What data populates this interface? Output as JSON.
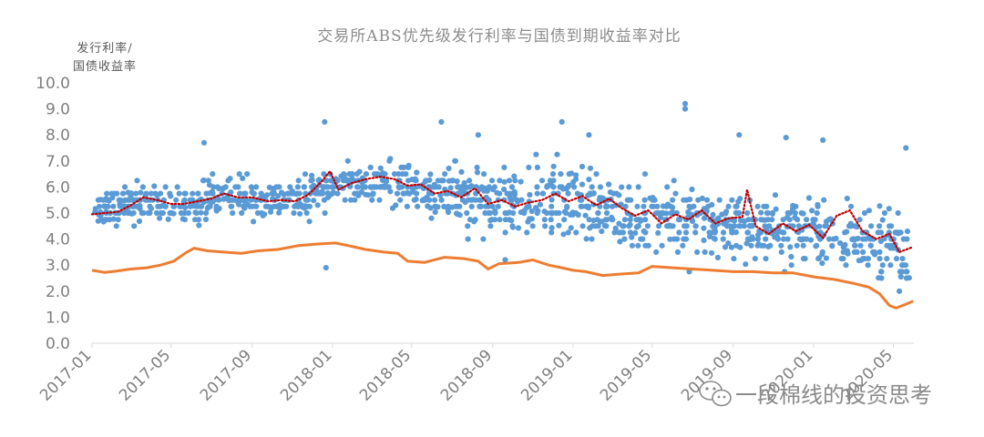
{
  "chart_data": {
    "type": "scatter",
    "title": "交易所ABS优先级发行利率与国债到期收益率对比",
    "ylabel_lines": [
      "发行利率/",
      "国债收益率"
    ],
    "ylim": [
      0,
      10
    ],
    "yticks": [
      "0.0",
      "1.0",
      "2.0",
      "3.0",
      "4.0",
      "5.0",
      "6.0",
      "7.0",
      "8.0",
      "9.0",
      "10.0"
    ],
    "xlim": [
      "2017-01-01",
      "2020-06-01"
    ],
    "xticks": [
      {
        "date": "2017-01-01",
        "label": "2017-01"
      },
      {
        "date": "2017-05-01",
        "label": "2017-05"
      },
      {
        "date": "2017-09-01",
        "label": "2017-09"
      },
      {
        "date": "2018-01-01",
        "label": "2018-01"
      },
      {
        "date": "2018-05-01",
        "label": "2018-05"
      },
      {
        "date": "2018-09-01",
        "label": "2018-09"
      },
      {
        "date": "2019-01-01",
        "label": "2019-01"
      },
      {
        "date": "2019-05-01",
        "label": "2019-05"
      },
      {
        "date": "2019-09-01",
        "label": "2019-09"
      },
      {
        "date": "2020-01-01",
        "label": "2020-01"
      },
      {
        "date": "2020-05-01",
        "label": "2020-05"
      }
    ],
    "grid": false,
    "legend": "none",
    "colors": {
      "scatter": "#5b9bd5",
      "treasury": "#ed7d31",
      "trend": "#c00000"
    },
    "scatter_band": [
      {
        "date": "2017-01-05",
        "center": 5.0,
        "spread": 0.5
      },
      {
        "date": "2017-03-01",
        "center": 5.4,
        "spread": 0.7
      },
      {
        "date": "2017-05-01",
        "center": 5.3,
        "spread": 0.6
      },
      {
        "date": "2017-07-01",
        "center": 5.5,
        "spread": 0.7
      },
      {
        "date": "2017-09-01",
        "center": 5.6,
        "spread": 0.6
      },
      {
        "date": "2017-11-01",
        "center": 5.5,
        "spread": 0.5
      },
      {
        "date": "2017-12-20",
        "center": 6.0,
        "spread": 0.8
      },
      {
        "date": "2018-02-01",
        "center": 6.2,
        "spread": 0.6
      },
      {
        "date": "2018-04-01",
        "center": 6.0,
        "spread": 0.8
      },
      {
        "date": "2018-06-01",
        "center": 5.8,
        "spread": 0.9
      },
      {
        "date": "2018-08-01",
        "center": 5.6,
        "spread": 1.0
      },
      {
        "date": "2018-10-01",
        "center": 5.3,
        "spread": 1.1
      },
      {
        "date": "2018-12-01",
        "center": 5.5,
        "spread": 1.2
      },
      {
        "date": "2019-02-01",
        "center": 5.3,
        "spread": 1.1
      },
      {
        "date": "2019-04-01",
        "center": 4.9,
        "spread": 1.2
      },
      {
        "date": "2019-06-01",
        "center": 4.7,
        "spread": 1.2
      },
      {
        "date": "2019-08-01",
        "center": 4.6,
        "spread": 1.2
      },
      {
        "date": "2019-10-01",
        "center": 4.4,
        "spread": 1.1
      },
      {
        "date": "2019-12-01",
        "center": 4.4,
        "spread": 1.1
      },
      {
        "date": "2020-02-01",
        "center": 4.1,
        "spread": 1.1
      },
      {
        "date": "2020-04-01",
        "center": 3.8,
        "spread": 1.2
      },
      {
        "date": "2020-05-25",
        "center": 3.5,
        "spread": 1.2
      }
    ],
    "outliers": [
      {
        "date": "2017-06-20",
        "value": 7.7
      },
      {
        "date": "2017-12-20",
        "value": 8.5
      },
      {
        "date": "2017-12-22",
        "value": 2.9
      },
      {
        "date": "2018-06-15",
        "value": 8.5
      },
      {
        "date": "2018-08-10",
        "value": 8.0
      },
      {
        "date": "2018-12-15",
        "value": 8.5
      },
      {
        "date": "2019-01-25",
        "value": 8.0
      },
      {
        "date": "2019-06-20",
        "value": 9.2
      },
      {
        "date": "2019-06-20",
        "value": 9.0
      },
      {
        "date": "2019-09-10",
        "value": 8.0
      },
      {
        "date": "2019-11-20",
        "value": 7.9
      },
      {
        "date": "2020-01-15",
        "value": 7.8
      },
      {
        "date": "2020-05-10",
        "value": 2.0
      },
      {
        "date": "2020-05-20",
        "value": 7.5
      },
      {
        "date": "2018-09-20",
        "value": 3.2
      }
    ],
    "series": [
      {
        "key": "treasury",
        "points": [
          [
            "2017-01-01",
            2.8
          ],
          [
            "2017-01-20",
            2.72
          ],
          [
            "2017-02-10",
            2.78
          ],
          [
            "2017-03-01",
            2.85
          ],
          [
            "2017-03-25",
            2.9
          ],
          [
            "2017-04-15",
            3.0
          ],
          [
            "2017-05-05",
            3.15
          ],
          [
            "2017-05-25",
            3.5
          ],
          [
            "2017-06-05",
            3.65
          ],
          [
            "2017-06-25",
            3.55
          ],
          [
            "2017-07-20",
            3.5
          ],
          [
            "2017-08-15",
            3.45
          ],
          [
            "2017-09-10",
            3.55
          ],
          [
            "2017-10-10",
            3.6
          ],
          [
            "2017-11-10",
            3.75
          ],
          [
            "2017-12-05",
            3.8
          ],
          [
            "2018-01-05",
            3.85
          ],
          [
            "2018-01-25",
            3.75
          ],
          [
            "2018-02-20",
            3.6
          ],
          [
            "2018-03-20",
            3.5
          ],
          [
            "2018-04-10",
            3.45
          ],
          [
            "2018-04-25",
            3.15
          ],
          [
            "2018-05-20",
            3.1
          ],
          [
            "2018-06-20",
            3.3
          ],
          [
            "2018-07-20",
            3.25
          ],
          [
            "2018-08-10",
            3.15
          ],
          [
            "2018-08-25",
            2.85
          ],
          [
            "2018-09-10",
            3.05
          ],
          [
            "2018-10-10",
            3.1
          ],
          [
            "2018-11-01",
            3.2
          ],
          [
            "2018-11-25",
            3.0
          ],
          [
            "2018-12-15",
            2.9
          ],
          [
            "2019-01-01",
            2.8
          ],
          [
            "2019-01-20",
            2.75
          ],
          [
            "2019-02-15",
            2.6
          ],
          [
            "2019-03-10",
            2.65
          ],
          [
            "2019-04-10",
            2.7
          ],
          [
            "2019-05-01",
            2.95
          ],
          [
            "2019-06-01",
            2.9
          ],
          [
            "2019-07-01",
            2.85
          ],
          [
            "2019-08-01",
            2.8
          ],
          [
            "2019-09-01",
            2.75
          ],
          [
            "2019-10-01",
            2.75
          ],
          [
            "2019-11-01",
            2.7
          ],
          [
            "2019-12-01",
            2.7
          ],
          [
            "2020-01-01",
            2.55
          ],
          [
            "2020-02-01",
            2.45
          ],
          [
            "2020-03-01",
            2.3
          ],
          [
            "2020-03-25",
            2.15
          ],
          [
            "2020-04-10",
            1.9
          ],
          [
            "2020-04-25",
            1.45
          ],
          [
            "2020-05-05",
            1.35
          ],
          [
            "2020-05-20",
            1.5
          ],
          [
            "2020-05-31",
            1.62
          ]
        ]
      },
      {
        "key": "trend",
        "points": [
          [
            "2017-01-01",
            4.95
          ],
          [
            "2017-01-20",
            5.0
          ],
          [
            "2017-02-10",
            5.05
          ],
          [
            "2017-03-01",
            5.3
          ],
          [
            "2017-03-20",
            5.6
          ],
          [
            "2017-04-10",
            5.5
          ],
          [
            "2017-05-01",
            5.35
          ],
          [
            "2017-05-20",
            5.35
          ],
          [
            "2017-06-10",
            5.45
          ],
          [
            "2017-06-30",
            5.55
          ],
          [
            "2017-07-20",
            5.75
          ],
          [
            "2017-08-10",
            5.6
          ],
          [
            "2017-09-01",
            5.6
          ],
          [
            "2017-09-25",
            5.45
          ],
          [
            "2017-10-15",
            5.5
          ],
          [
            "2017-11-05",
            5.45
          ],
          [
            "2017-11-25",
            5.7
          ],
          [
            "2017-12-15",
            6.2
          ],
          [
            "2017-12-28",
            6.6
          ],
          [
            "2018-01-10",
            5.9
          ],
          [
            "2018-01-30",
            6.15
          ],
          [
            "2018-02-20",
            6.3
          ],
          [
            "2018-03-15",
            6.4
          ],
          [
            "2018-04-05",
            6.3
          ],
          [
            "2018-04-25",
            6.05
          ],
          [
            "2018-05-15",
            6.1
          ],
          [
            "2018-06-05",
            5.75
          ],
          [
            "2018-06-25",
            5.85
          ],
          [
            "2018-07-15",
            5.6
          ],
          [
            "2018-08-05",
            5.95
          ],
          [
            "2018-08-25",
            5.35
          ],
          [
            "2018-09-15",
            5.5
          ],
          [
            "2018-10-05",
            5.25
          ],
          [
            "2018-10-25",
            5.4
          ],
          [
            "2018-11-15",
            5.5
          ],
          [
            "2018-12-05",
            5.75
          ],
          [
            "2018-12-25",
            5.45
          ],
          [
            "2019-01-15",
            5.65
          ],
          [
            "2019-02-05",
            5.3
          ],
          [
            "2019-02-25",
            5.55
          ],
          [
            "2019-03-15",
            5.2
          ],
          [
            "2019-04-05",
            4.9
          ],
          [
            "2019-04-25",
            5.1
          ],
          [
            "2019-05-15",
            4.6
          ],
          [
            "2019-06-05",
            4.95
          ],
          [
            "2019-06-25",
            4.75
          ],
          [
            "2019-07-15",
            5.1
          ],
          [
            "2019-08-05",
            4.6
          ],
          [
            "2019-08-25",
            4.8
          ],
          [
            "2019-09-15",
            4.85
          ],
          [
            "2019-09-22",
            5.9
          ],
          [
            "2019-10-05",
            4.5
          ],
          [
            "2019-10-25",
            4.2
          ],
          [
            "2019-11-15",
            4.6
          ],
          [
            "2019-12-05",
            4.3
          ],
          [
            "2019-12-25",
            4.55
          ],
          [
            "2020-01-15",
            4.05
          ],
          [
            "2020-02-05",
            4.9
          ],
          [
            "2020-02-25",
            5.1
          ],
          [
            "2020-03-15",
            4.3
          ],
          [
            "2020-04-05",
            4.0
          ],
          [
            "2020-04-25",
            4.2
          ],
          [
            "2020-05-10",
            3.5
          ],
          [
            "2020-05-31",
            3.7
          ]
        ]
      }
    ]
  },
  "watermark": {
    "text": "一段棉线的投资思考",
    "icon": "wechat-icon"
  }
}
